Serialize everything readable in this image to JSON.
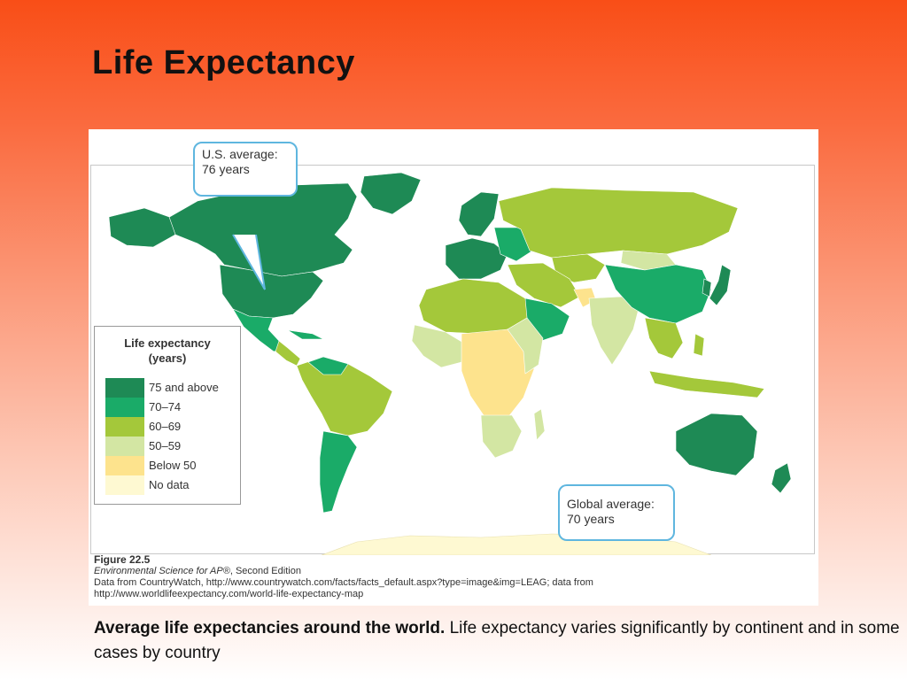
{
  "slide": {
    "title": "Life Expectancy",
    "caption_bold": "Average life expectancies around the world.",
    "caption_text": " Life expectancy varies significantly by continent and in some cases by country"
  },
  "figure": {
    "callout_us": {
      "line1": "U.S. average:",
      "line2": "76 years"
    },
    "callout_global": {
      "line1": "Global average:",
      "line2": "70 years"
    },
    "legend": {
      "title_line1": "Life expectancy",
      "title_line2": "(years)",
      "items": [
        {
          "label": "75 and above",
          "color": "#1e8a55"
        },
        {
          "label": "70–74",
          "color": "#1aab68"
        },
        {
          "label": "60–69",
          "color": "#a4c83a"
        },
        {
          "label": "50–59",
          "color": "#d3e6a3"
        },
        {
          "label": "Below 50",
          "color": "#fde38d"
        },
        {
          "label": "No data",
          "color": "#fef9d2"
        }
      ]
    },
    "caption": {
      "number": "Figure 22.5",
      "book_italic": "Environmental Science for AP®",
      "book_rest": ", Second Edition",
      "source1": "Data from CountryWatch, http://www.countrywatch.com/facts/facts_default.aspx?type=image&img=LEAG; data from",
      "source2": "http://www.worldlifeexpectancy.com/world-life-expectancy-map"
    }
  }
}
